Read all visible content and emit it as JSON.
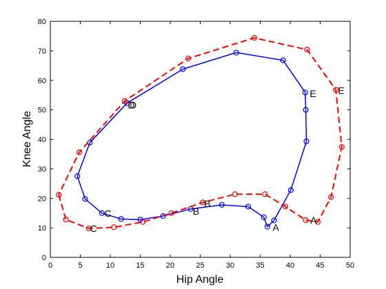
{
  "chart_data": {
    "type": "line",
    "title": "",
    "xlabel": "Hip  Angle",
    "ylabel": "Knee Angle",
    "xlim": [
      0,
      50
    ],
    "ylim": [
      0,
      80
    ],
    "xticks": [
      0,
      5,
      10,
      15,
      20,
      25,
      30,
      35,
      40,
      45,
      50
    ],
    "yticks": [
      0,
      10,
      20,
      30,
      40,
      50,
      60,
      70,
      80
    ],
    "grid": false,
    "series": [
      {
        "style": "solid",
        "color": "#0000ff",
        "marker": "circle",
        "x": [
          4.5,
          5.8,
          8.6,
          11.8,
          15.0,
          18.8,
          23.4,
          28.6,
          33.0,
          35.6,
          36.2,
          37.3,
          40.1,
          42.7,
          42.6,
          42.5,
          38.8,
          31.0,
          22.1,
          12.8,
          6.6,
          4.5
        ],
        "y": [
          27.5,
          19.8,
          15.0,
          13.0,
          12.8,
          14.0,
          16.4,
          17.8,
          17.2,
          13.6,
          10.4,
          12.5,
          22.8,
          39.3,
          50.0,
          55.9,
          66.8,
          69.4,
          63.8,
          52.3,
          38.9,
          27.5
        ]
      },
      {
        "style": "dashed",
        "color": "#ff0000",
        "marker": "circle",
        "x": [
          1.4,
          2.6,
          6.4,
          10.6,
          15.4,
          20.2,
          25.4,
          30.8,
          35.8,
          39.2,
          42.6,
          44.6,
          46.8,
          48.6,
          47.6,
          42.8,
          34.0,
          23.0,
          12.4,
          4.8,
          1.4
        ],
        "y": [
          21.2,
          12.8,
          9.8,
          10.2,
          12.0,
          15.0,
          18.6,
          21.4,
          21.4,
          17.2,
          12.6,
          12.0,
          20.4,
          37.4,
          56.8,
          70.4,
          74.4,
          67.4,
          53.0,
          35.6,
          21.2
        ]
      }
    ],
    "annotations": [
      {
        "text": "A",
        "x": 37.6,
        "y": 9.0
      },
      {
        "text": "A",
        "x": 43.9,
        "y": 11.4
      },
      {
        "text": "B",
        "x": 24.3,
        "y": 14.5
      },
      {
        "text": "B",
        "x": 26.2,
        "y": 17.0
      },
      {
        "text": "C",
        "x": 9.6,
        "y": 13.8
      },
      {
        "text": "C",
        "x": 7.2,
        "y": 8.6
      },
      {
        "text": "D",
        "x": 13.8,
        "y": 50.5
      },
      {
        "text": "D",
        "x": 13.5,
        "y": 50.5
      },
      {
        "text": "E",
        "x": 43.8,
        "y": 54.4
      },
      {
        "text": "E",
        "x": 48.5,
        "y": 55.4
      }
    ]
  }
}
